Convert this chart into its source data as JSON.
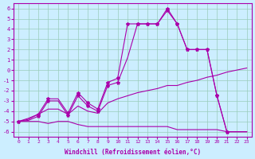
{
  "xlabel": "Windchill (Refroidissement éolien,°C)",
  "bg_color": "#cceeff",
  "line_color": "#aa00aa",
  "grid_color": "#99ccbb",
  "xlim": [
    -0.5,
    23.5
  ],
  "ylim": [
    -6.5,
    6.5
  ],
  "xtick_min": 0,
  "xtick_max": 23,
  "ytick_min": -6,
  "ytick_max": 6,
  "line1_x": [
    0,
    1,
    2,
    3,
    4,
    5,
    6,
    7,
    8,
    9,
    10,
    11,
    12,
    13,
    14,
    15,
    16,
    17,
    18,
    19,
    20,
    21,
    22,
    23
  ],
  "line1_y": [
    -5,
    -5,
    -5,
    -5.2,
    -5,
    -5,
    -5.3,
    -5.5,
    -5.5,
    -5.5,
    -5.5,
    -5.5,
    -5.5,
    -5.5,
    -5.5,
    -5.5,
    -5.8,
    -5.8,
    -5.8,
    -5.8,
    -5.8,
    -6,
    -6,
    -6
  ],
  "line2_x": [
    0,
    1,
    2,
    3,
    4,
    5,
    6,
    7,
    8,
    9,
    10,
    11,
    12,
    13,
    14,
    15,
    16,
    17,
    18,
    19,
    20,
    21,
    22,
    23
  ],
  "line2_y": [
    -5,
    -4.7,
    -4.3,
    -3.8,
    -3.8,
    -4.3,
    -3.5,
    -4.0,
    -4.2,
    -3.2,
    -2.8,
    -2.5,
    -2.2,
    -2.0,
    -1.8,
    -1.5,
    -1.5,
    -1.2,
    -1.0,
    -0.7,
    -0.5,
    -0.2,
    0.0,
    0.2
  ],
  "line3_x": [
    0,
    1,
    2,
    3,
    4,
    5,
    6,
    7,
    8,
    9,
    10,
    11,
    12,
    13,
    14,
    15,
    16,
    17,
    18,
    19,
    20,
    21,
    22,
    23
  ],
  "line3_y": [
    -5,
    -4.8,
    -4.3,
    -2.8,
    -2.8,
    -4.2,
    -2.2,
    -3.2,
    -3.8,
    -1.2,
    -0.8,
    4.5,
    4.5,
    4.5,
    4.5,
    6.0,
    4.5,
    2.0,
    2.0,
    2.0,
    -2.5,
    -6,
    -6,
    -6
  ],
  "line4_x": [
    0,
    1,
    2,
    3,
    4,
    5,
    6,
    7,
    8,
    9,
    10,
    11,
    12,
    13,
    14,
    15,
    16,
    17,
    18,
    19,
    20,
    21,
    22,
    23
  ],
  "line4_y": [
    -5,
    -4.9,
    -4.5,
    -3.0,
    -3.0,
    -4.4,
    -2.5,
    -3.5,
    -4.0,
    -1.5,
    -1.2,
    1.2,
    4.5,
    4.5,
    4.5,
    5.8,
    4.5,
    2.0,
    2.0,
    2.0,
    -2.5,
    -6,
    -6,
    -6
  ],
  "marker_x3": [
    0,
    2,
    3,
    5,
    6,
    7,
    8,
    9,
    10,
    11,
    12,
    13,
    14,
    15,
    16,
    17,
    18,
    19,
    20,
    21
  ],
  "marker_y3": [
    -5,
    -4.3,
    -2.8,
    -4.2,
    -2.2,
    -3.2,
    -3.8,
    -1.2,
    -0.8,
    4.5,
    4.5,
    4.5,
    4.5,
    6.0,
    4.5,
    2.0,
    2.0,
    2.0,
    -2.5,
    -6
  ],
  "marker_x4": [
    0,
    2,
    3,
    5,
    6,
    7,
    8,
    9,
    10,
    12,
    13,
    14,
    15,
    16,
    17,
    18,
    19,
    20,
    21
  ],
  "marker_y4": [
    -5,
    -4.5,
    -3.0,
    -4.4,
    -2.5,
    -3.5,
    -4.0,
    -1.5,
    -1.2,
    4.5,
    4.5,
    4.5,
    5.8,
    4.5,
    2.0,
    2.0,
    2.0,
    -2.5,
    -6
  ]
}
